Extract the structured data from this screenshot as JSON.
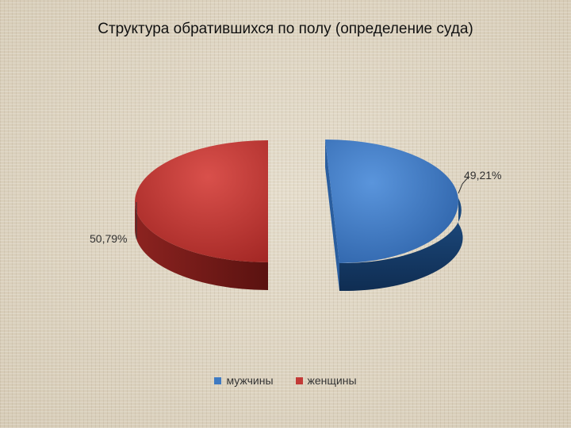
{
  "chart_data": {
    "type": "pie",
    "title": "Структура обратившихся по полу (определение суда)",
    "categories": [
      "мужчины",
      "женщины"
    ],
    "values": [
      49.21,
      50.79
    ],
    "data_labels": [
      "49,21%",
      "50,79%"
    ],
    "colors": [
      "#3f7ac2",
      "#c23a37"
    ],
    "legend_placement": "bottom",
    "exploded": true,
    "style": "3d"
  }
}
